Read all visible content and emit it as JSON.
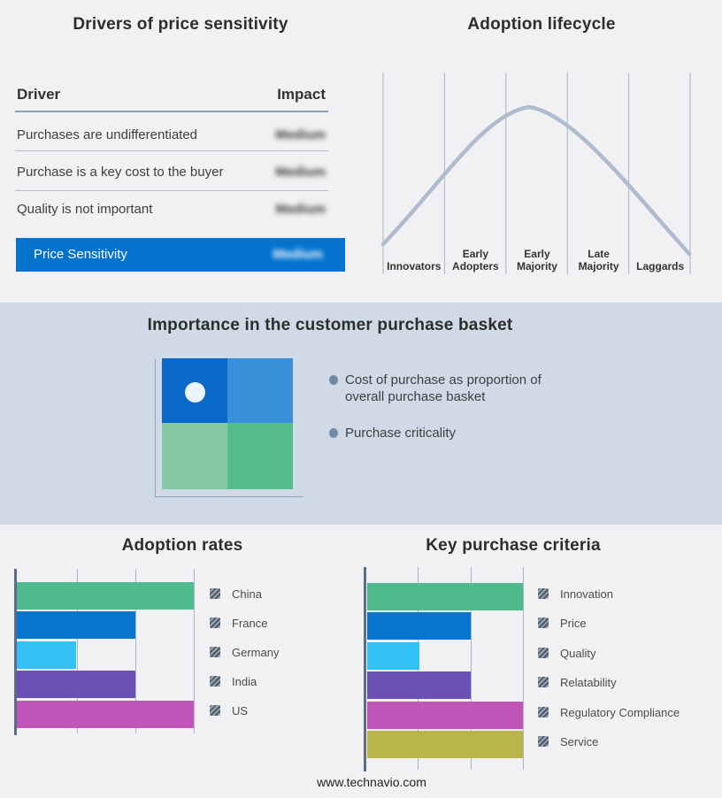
{
  "footer": {
    "url": "www.technavio.com"
  },
  "colors": {
    "page_bg": "#f1f1f3",
    "band_bg": "#cfdae6",
    "accent_blue": "#0473ce",
    "curve": "#aebccd",
    "bar_green": "#4fba8c",
    "bar_blue": "#0575cd",
    "bar_cyan": "#31c1f6",
    "bar_purple": "#6b51b5",
    "bar_magenta": "#c055b9",
    "bar_olive": "#b9b54b",
    "quad_top_left": "#0a68c8",
    "quad_top_right": "#3990d8",
    "quad_bottom_left": "#84c7a3",
    "quad_bottom_right": "#54bc8b"
  },
  "basket_panel": {
    "title": "Importance in the customer purchase basket",
    "bullets": [
      "Cost of purchase as proportion of overall purchase basket",
      "Purchase criticality"
    ]
  },
  "chart_data": [
    {
      "type": "table",
      "title": "Drivers of price sensitivity",
      "columns": [
        "Driver",
        "Impact"
      ],
      "rows": [
        [
          "Purchases are undifferentiated",
          "Medium"
        ],
        [
          "Purchase is a key cost to the buyer",
          "Medium"
        ],
        [
          "Quality is not important",
          "Medium"
        ],
        [
          "Price Sensitivity",
          "Medium"
        ]
      ],
      "highlight_row_index": 3,
      "impact_values_blurred": true
    },
    {
      "type": "line",
      "title": "Adoption lifecycle",
      "categories": [
        "Innovators",
        "Early Adopters",
        "Early Majority",
        "Late Majority",
        "Laggards"
      ],
      "curve": {
        "shape": "bell",
        "start_y": 0.15,
        "peak_y": 1.0,
        "end_y": 0.1,
        "peak_over": "Early Majority"
      },
      "grid": "vertical",
      "axis_labels_position": "bottom"
    },
    {
      "type": "bar",
      "title": "Adoption rates",
      "orientation": "horizontal",
      "categories": [
        "China",
        "France",
        "Germany",
        "India",
        "US"
      ],
      "values": [
        3,
        2,
        1,
        2,
        3
      ],
      "xlim": [
        0,
        3
      ],
      "grid": "vertical",
      "legend_position": "right"
    },
    {
      "type": "bar",
      "title": "Key purchase criteria",
      "orientation": "horizontal",
      "categories": [
        "Innovation",
        "Price",
        "Quality",
        "Relatability",
        "Regulatory Compliance",
        "Service"
      ],
      "values": [
        3,
        2,
        1,
        2,
        3,
        3
      ],
      "xlim": [
        0,
        3
      ],
      "grid": "vertical",
      "legend_position": "right"
    }
  ]
}
